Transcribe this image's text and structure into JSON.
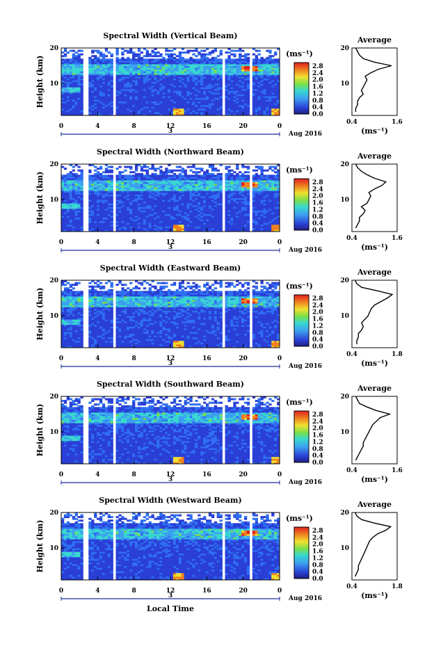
{
  "figure": {
    "xlabel": "Local Time",
    "date_label": "Aug 2016",
    "day_label": "3",
    "ylabel": "Height (km)",
    "colorbar_unit": "(ms⁻¹)",
    "avg_title": "Average",
    "avg_xlabel": "(ms⁻¹)"
  },
  "chart_data": [
    {
      "type": "heatmap",
      "title": "Spectral Width (Vertical Beam)",
      "xlabel": "Local Time",
      "ylabel": "Height (km)",
      "x_ticks": [
        "0",
        "4",
        "8",
        "12",
        "16",
        "20",
        "0"
      ],
      "y_ticks": [
        "20",
        "10"
      ],
      "xlim": [
        0,
        24
      ],
      "ylim": [
        1,
        20
      ],
      "colorbar": {
        "ticks": [
          "2.8",
          "2.4",
          "2.0",
          "1.6",
          "1.2",
          "0.8",
          "0.4",
          "0.0"
        ],
        "range": [
          0.0,
          3.0
        ]
      },
      "data_gaps_hours": [
        [
          2.3,
          2.9
        ],
        [
          5.8,
          6.1
        ],
        [
          17.6,
          17.9
        ],
        [
          20.6,
          20.9
        ]
      ],
      "average_profile": {
        "xlim": [
          0.4,
          1.6
        ],
        "x_ticks": [
          "0.4",
          "1.6"
        ],
        "y_ticks": [
          "20",
          "10"
        ],
        "height_km": [
          2,
          3,
          4,
          5,
          6,
          7,
          8,
          9,
          10,
          11,
          12,
          13,
          14,
          15,
          16,
          17,
          18,
          19,
          20
        ],
        "width_ms": [
          0.5,
          0.5,
          0.55,
          0.55,
          0.6,
          0.7,
          0.65,
          0.7,
          0.75,
          0.8,
          0.75,
          0.9,
          1.1,
          1.45,
          1.0,
          0.7,
          0.6,
          0.55,
          0.5
        ]
      }
    },
    {
      "type": "heatmap",
      "title": "Spectral Width (Northward Beam)",
      "xlabel": "Local Time",
      "ylabel": "Height (km)",
      "x_ticks": [
        "0",
        "4",
        "8",
        "12",
        "16",
        "20",
        "0"
      ],
      "y_ticks": [
        "20",
        "10"
      ],
      "xlim": [
        0,
        24
      ],
      "ylim": [
        1,
        20
      ],
      "colorbar": {
        "ticks": [
          "2.8",
          "2.4",
          "2.0",
          "1.6",
          "1.2",
          "0.8",
          "0.4",
          "0.0"
        ],
        "range": [
          0.0,
          3.0
        ]
      },
      "data_gaps_hours": [
        [
          2.3,
          2.9
        ],
        [
          5.8,
          6.1
        ],
        [
          17.6,
          17.9
        ],
        [
          20.6,
          20.9
        ]
      ],
      "average_profile": {
        "xlim": [
          0.4,
          1.6
        ],
        "x_ticks": [
          "0.4",
          "1.6"
        ],
        "y_ticks": [
          "20",
          "10"
        ],
        "height_km": [
          2,
          3,
          4,
          5,
          6,
          7,
          8,
          9,
          10,
          11,
          12,
          13,
          14,
          15,
          16,
          17,
          18,
          19,
          20
        ],
        "width_ms": [
          0.5,
          0.55,
          0.6,
          0.6,
          0.7,
          0.75,
          0.65,
          0.8,
          0.85,
          0.9,
          0.85,
          1.0,
          1.2,
          1.3,
          1.0,
          0.8,
          0.65,
          0.55,
          0.5
        ]
      }
    },
    {
      "type": "heatmap",
      "title": "Spectral Width (Eastward Beam)",
      "xlabel": "Local Time",
      "ylabel": "Height (km)",
      "x_ticks": [
        "0",
        "4",
        "8",
        "12",
        "16",
        "20",
        "0"
      ],
      "y_ticks": [
        "20",
        "10"
      ],
      "xlim": [
        0,
        24
      ],
      "ylim": [
        1,
        20
      ],
      "colorbar": {
        "ticks": [
          "2.8",
          "2.4",
          "2.0",
          "1.6",
          "1.2",
          "0.8",
          "0.4",
          "0.0"
        ],
        "range": [
          0.0,
          3.0
        ]
      },
      "data_gaps_hours": [
        [
          2.3,
          2.9
        ],
        [
          5.8,
          6.1
        ],
        [
          17.6,
          17.9
        ],
        [
          20.6,
          20.9
        ]
      ],
      "average_profile": {
        "xlim": [
          0.4,
          1.8
        ],
        "x_ticks": [
          "0.4",
          "1.8"
        ],
        "y_ticks": [
          "20",
          "10"
        ],
        "height_km": [
          2,
          3,
          4,
          5,
          6,
          7,
          8,
          9,
          10,
          11,
          12,
          13,
          14,
          15,
          16,
          17,
          18,
          19,
          20
        ],
        "width_ms": [
          0.55,
          0.55,
          0.6,
          0.6,
          0.7,
          0.75,
          0.7,
          0.8,
          0.9,
          0.95,
          1.0,
          1.1,
          1.3,
          1.5,
          1.65,
          1.2,
          0.7,
          0.55,
          0.5
        ]
      }
    },
    {
      "type": "heatmap",
      "title": "Spectral Width (Southward Beam)",
      "xlabel": "Local Time",
      "ylabel": "Height (km)",
      "x_ticks": [
        "0",
        "4",
        "8",
        "12",
        "16",
        "20",
        "0"
      ],
      "y_ticks": [
        "20",
        "10"
      ],
      "xlim": [
        0,
        24
      ],
      "ylim": [
        1,
        20
      ],
      "colorbar": {
        "ticks": [
          "2.8",
          "2.4",
          "2.0",
          "1.6",
          "1.2",
          "0.8",
          "0.4",
          "0.0"
        ],
        "range": [
          0.0,
          3.0
        ]
      },
      "data_gaps_hours": [
        [
          2.3,
          2.9
        ],
        [
          5.8,
          6.1
        ],
        [
          17.6,
          17.9
        ],
        [
          20.6,
          20.9
        ]
      ],
      "average_profile": {
        "xlim": [
          0.4,
          1.6
        ],
        "x_ticks": [
          "0.4",
          "1.6"
        ],
        "y_ticks": [
          "20",
          "10"
        ],
        "height_km": [
          2,
          3,
          4,
          5,
          6,
          7,
          8,
          9,
          10,
          11,
          12,
          13,
          14,
          15,
          16,
          17,
          18,
          19,
          20
        ],
        "width_ms": [
          0.5,
          0.55,
          0.6,
          0.65,
          0.7,
          0.7,
          0.75,
          0.8,
          0.85,
          0.9,
          0.95,
          1.05,
          1.15,
          1.4,
          1.05,
          0.8,
          0.6,
          0.55,
          0.5
        ]
      }
    },
    {
      "type": "heatmap",
      "title": "Spectral Width (Westward Beam)",
      "xlabel": "Local Time",
      "ylabel": "Height (km)",
      "x_ticks": [
        "0",
        "4",
        "8",
        "12",
        "16",
        "20",
        "0"
      ],
      "y_ticks": [
        "20",
        "10"
      ],
      "xlim": [
        0,
        24
      ],
      "ylim": [
        1,
        20
      ],
      "colorbar": {
        "ticks": [
          "2.8",
          "2.4",
          "2.0",
          "1.6",
          "1.2",
          "0.8",
          "0.4",
          "0.0"
        ],
        "range": [
          0.0,
          3.0
        ]
      },
      "data_gaps_hours": [
        [
          2.3,
          2.9
        ],
        [
          5.8,
          6.1
        ],
        [
          17.6,
          17.9
        ],
        [
          20.6,
          20.9
        ]
      ],
      "average_profile": {
        "xlim": [
          0.4,
          1.8
        ],
        "x_ticks": [
          "0.4",
          "1.8"
        ],
        "y_ticks": [
          "20",
          "10"
        ],
        "height_km": [
          2,
          3,
          4,
          5,
          6,
          7,
          8,
          9,
          10,
          11,
          12,
          13,
          14,
          15,
          16,
          17,
          18,
          19,
          20
        ],
        "width_ms": [
          0.5,
          0.55,
          0.6,
          0.6,
          0.65,
          0.7,
          0.75,
          0.8,
          0.85,
          0.9,
          0.95,
          1.05,
          1.2,
          1.45,
          1.6,
          1.1,
          0.7,
          0.55,
          0.5
        ]
      }
    }
  ]
}
